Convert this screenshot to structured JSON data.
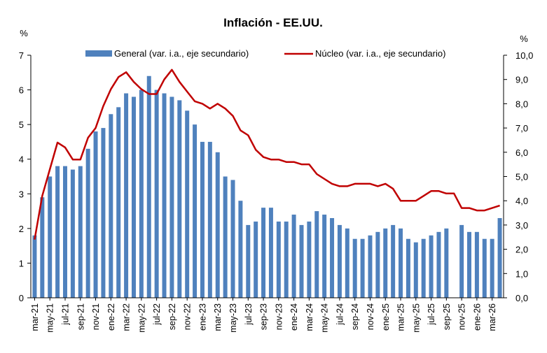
{
  "chart_data": {
    "type": "bar+line",
    "title": "Inflación - EE.UU.",
    "left_axis_unit": "%",
    "right_axis_unit": "%",
    "left_axis": {
      "min": 0,
      "max": 7,
      "step": 1,
      "tick_labels": [
        "0",
        "1",
        "2",
        "3",
        "4",
        "5",
        "6",
        "7"
      ]
    },
    "right_axis": {
      "min": 0,
      "max": 10,
      "step": 1,
      "tick_labels": [
        "0,0",
        "1,0",
        "2,0",
        "3,0",
        "4,0",
        "5,0",
        "6,0",
        "7,0",
        "8,0",
        "9,0",
        "10,0"
      ]
    },
    "x_tick_labels": [
      "mar-21",
      "may-21",
      "jul-21",
      "sep-21",
      "nov-21",
      "ene-22",
      "mar-22",
      "may-22",
      "jul-22",
      "sep-22",
      "nov-22",
      "ene-23",
      "mar-23",
      "may-23",
      "jul-23",
      "sep-23",
      "nov-23",
      "ene-24",
      "mar-24",
      "may-24",
      "jul-24",
      "sep-24",
      "nov-24",
      "ene-25",
      "mar-25",
      "may-25",
      "jul-25",
      "sep-25",
      "nov-25",
      "ene-26",
      "mar-26"
    ],
    "legend_position": "top",
    "series": [
      {
        "name": "General (var. i.a., eje secundario)",
        "type": "bar",
        "axis": "left",
        "color": "#4f81bd",
        "values": [
          1.8,
          2.9,
          3.5,
          3.8,
          3.8,
          3.7,
          3.8,
          4.3,
          4.8,
          4.9,
          5.3,
          5.5,
          5.9,
          5.8,
          6.0,
          6.4,
          6.0,
          5.9,
          5.8,
          5.7,
          5.4,
          5.0,
          4.5,
          4.5,
          4.2,
          3.5,
          3.4,
          2.8,
          2.1,
          2.2,
          2.6,
          2.6,
          2.2,
          2.2,
          2.4,
          2.1,
          2.2,
          2.5,
          2.4,
          2.3,
          2.1,
          2.0,
          1.7,
          1.7,
          1.8,
          1.9,
          2.0,
          2.1,
          2.0,
          1.7,
          1.6,
          1.7,
          1.8,
          1.9,
          2.0,
          null,
          2.1,
          1.9,
          1.9,
          1.7,
          1.7,
          2.3
        ]
      },
      {
        "name": "Núcleo (var. i.a., eje secundario)",
        "type": "line",
        "axis": "right",
        "color": "#c00000",
        "values": [
          2.4,
          4.2,
          5.3,
          6.4,
          6.2,
          5.7,
          5.7,
          6.6,
          7.0,
          7.9,
          8.6,
          9.1,
          9.3,
          8.9,
          8.6,
          8.4,
          8.4,
          9.0,
          9.4,
          8.9,
          8.5,
          8.1,
          8.0,
          7.8,
          8.0,
          7.8,
          7.5,
          6.9,
          6.7,
          6.1,
          5.8,
          5.7,
          5.7,
          5.6,
          5.6,
          5.5,
          5.5,
          5.1,
          4.9,
          4.7,
          4.6,
          4.6,
          4.7,
          4.7,
          4.7,
          4.6,
          4.7,
          4.5,
          4.0,
          4.0,
          4.0,
          4.2,
          4.4,
          4.4,
          4.3,
          4.3,
          3.7,
          3.7,
          3.6,
          3.6,
          3.7,
          3.8
        ]
      }
    ]
  }
}
